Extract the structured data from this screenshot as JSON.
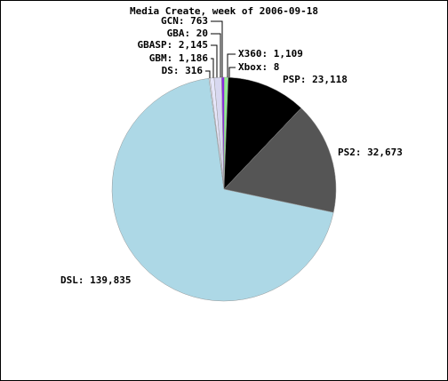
{
  "chart_data": {
    "type": "pie",
    "title": "Media Create, week of 2006-09-18",
    "labels": [
      "DSL: 139,835",
      "DS: 316",
      "GBM: 1,186",
      "GBASP: 2,145",
      "GBA: 20",
      "GCN: 763",
      "X360: 1,109",
      "Xbox: 8",
      "PSP: 23,118",
      "PS2: 32,673"
    ],
    "values": [
      139835,
      316,
      1186,
      2145,
      20,
      763,
      1109,
      8,
      23118,
      32673
    ],
    "colors": [
      "#add8e6",
      "#f4f4ff",
      "#e6e6fa",
      "#d8d8f0",
      "#b0b0ff",
      "#8a2be2",
      "#90ee90",
      "#00b000",
      "#000000",
      "#555555"
    ]
  }
}
